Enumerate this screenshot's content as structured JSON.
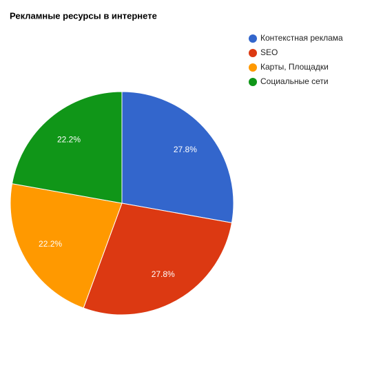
{
  "chart_data": {
    "type": "pie",
    "title": "Рекламные ресурсы в интернете",
    "categories": [
      "Контекстная реклама",
      "SEO",
      "Карты, Площадки",
      "Социальные сети"
    ],
    "values": [
      27.8,
      27.8,
      22.2,
      22.2
    ],
    "value_labels": [
      "27.8%",
      "27.8%",
      "22.2%",
      "22.2%"
    ],
    "colors": [
      "#3366cc",
      "#dc3912",
      "#ff9900",
      "#109618"
    ],
    "legend": "right"
  }
}
